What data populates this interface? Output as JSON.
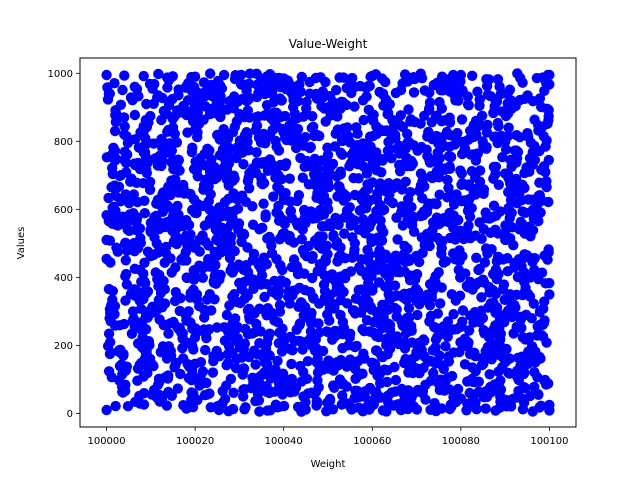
{
  "chart_data": {
    "type": "scatter",
    "title": "Value-Weight",
    "xlabel": "Weight",
    "ylabel": "Values",
    "xlim": [
      99994,
      100106
    ],
    "ylim": [
      -40,
      1045
    ],
    "x_ticks": [
      100000,
      100020,
      100040,
      100060,
      100080,
      100100
    ],
    "y_ticks": [
      0,
      200,
      400,
      600,
      800,
      1000
    ],
    "x_tick_labels": [
      "100000",
      "100020",
      "100040",
      "100060",
      "100080",
      "100100"
    ],
    "y_tick_labels": [
      "0",
      "200",
      "400",
      "600",
      "800",
      "1000"
    ],
    "grid": false,
    "legend": "none",
    "colors": {
      "marker": "#0000ff",
      "axes": "#000000"
    },
    "series": [
      {
        "x_range": [
          100000,
          100100
        ],
        "y_range": [
          5,
          1000
        ],
        "distribution": "uniform",
        "point_count": 2500,
        "points": [
          [
            100000,
            10
          ],
          [
            100000,
            995
          ],
          [
            100100,
            995
          ],
          [
            100100,
            25
          ],
          [
            100020,
            990
          ],
          [
            100040,
            985
          ],
          [
            100060,
            992
          ],
          [
            100080,
            995
          ],
          [
            100002,
            640
          ],
          [
            100004,
            820
          ],
          [
            100010,
            560
          ],
          [
            100016,
            610
          ],
          [
            100030,
            880
          ],
          [
            100048,
            520
          ],
          [
            100050,
            760
          ],
          [
            100064,
            260
          ],
          [
            100076,
            950
          ],
          [
            100090,
            705
          ],
          [
            100098,
            630
          ],
          [
            100100,
            350
          ],
          [
            100012,
            35
          ],
          [
            100024,
            120
          ],
          [
            100036,
            190
          ],
          [
            100044,
            5
          ],
          [
            100056,
            45
          ],
          [
            100068,
            25
          ],
          [
            100082,
            60
          ],
          [
            100094,
            12
          ],
          [
            100006,
            300
          ],
          [
            100018,
            450
          ],
          [
            100028,
            420
          ],
          [
            100042,
            360
          ],
          [
            100054,
            410
          ],
          [
            100070,
            330
          ],
          [
            100086,
            470
          ],
          [
            100096,
            280
          ]
        ]
      }
    ]
  }
}
